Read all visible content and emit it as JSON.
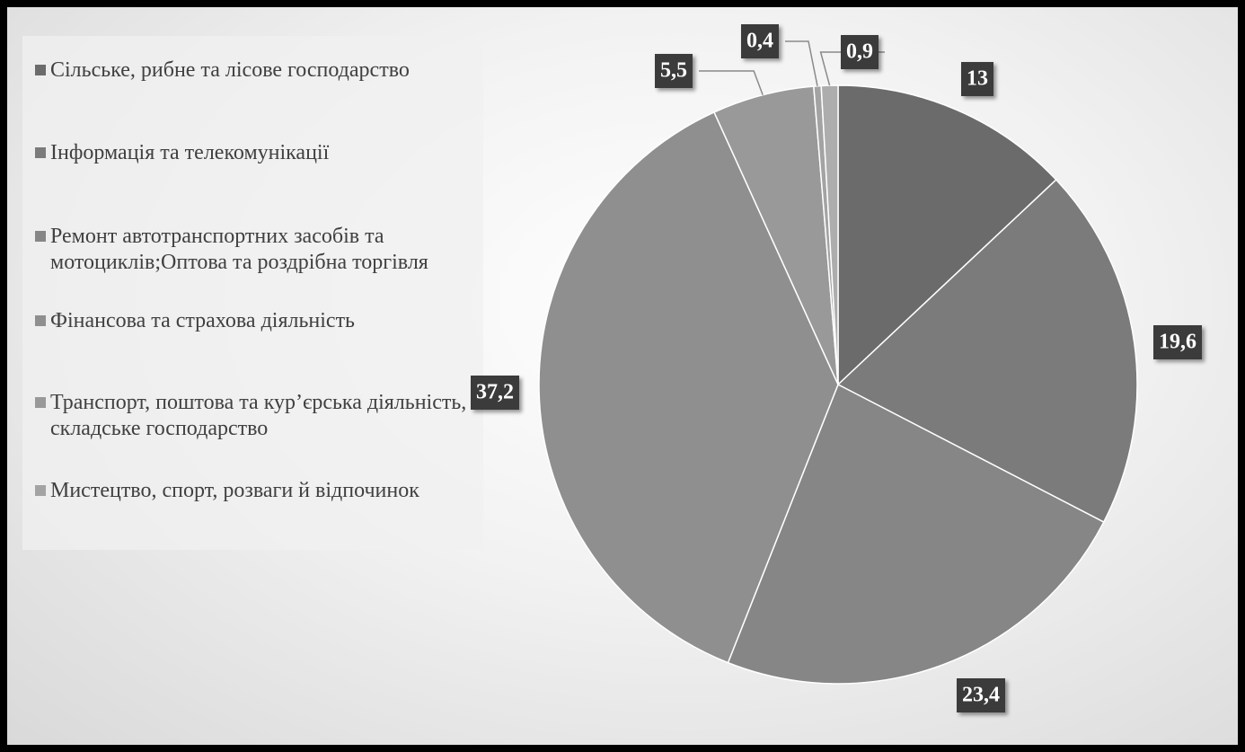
{
  "chart_data": {
    "type": "pie",
    "categories": [
      "Сільське, рибне та лісове господарство",
      "Інформація та телекомунікації",
      "Ремонт автотранспортних засобів та мотоциклів;Оптова та роздрібна торгівля",
      "Фінансова та страхова діяльність",
      "Транспорт, поштова та кур’єрська діяльність, складське господарство",
      "Мистецтво, спорт, розваги й відпочинок",
      null
    ],
    "values": [
      13,
      19.6,
      23.4,
      37.2,
      5.5,
      0.4,
      0.9
    ],
    "value_labels": [
      "13",
      "19,6",
      "23,4",
      "37,2",
      "5,5",
      "0,4",
      "0,9"
    ],
    "colors": [
      "#6b6b6b",
      "#7b7b7b",
      "#868686",
      "#8f8f8f",
      "#999999",
      "#a3a3a3",
      "#adadad"
    ],
    "legend": "top-left"
  }
}
